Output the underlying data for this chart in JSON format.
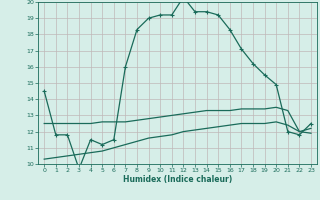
{
  "xlabel": "Humidex (Indice chaleur)",
  "xlim": [
    -0.5,
    23.5
  ],
  "ylim": [
    10,
    20
  ],
  "yticks": [
    10,
    11,
    12,
    13,
    14,
    15,
    16,
    17,
    18,
    19,
    20
  ],
  "xticks": [
    0,
    1,
    2,
    3,
    4,
    5,
    6,
    7,
    8,
    9,
    10,
    11,
    12,
    13,
    14,
    15,
    16,
    17,
    18,
    19,
    20,
    21,
    22,
    23
  ],
  "bg_color": "#d6eee8",
  "grid_color": "#c0b8b8",
  "line_color": "#1a6b5a",
  "line_width": 0.9,
  "marker_size": 2.5,
  "main_x": [
    0,
    1,
    2,
    3,
    4,
    5,
    6,
    7,
    8,
    9,
    10,
    11,
    12,
    13,
    14,
    15,
    16,
    17,
    18,
    19,
    20,
    21,
    22,
    23
  ],
  "main_y": [
    14.5,
    11.8,
    11.8,
    9.7,
    11.5,
    11.2,
    11.5,
    16.0,
    18.3,
    19.0,
    19.2,
    19.2,
    20.3,
    19.4,
    19.4,
    19.2,
    18.3,
    17.1,
    16.2,
    15.5,
    14.9,
    12.0,
    11.8,
    12.5
  ],
  "upper_x": [
    0,
    1,
    2,
    3,
    4,
    5,
    6,
    7,
    8,
    9,
    10,
    11,
    12,
    13,
    14,
    15,
    16,
    17,
    18,
    19,
    20,
    21,
    22,
    23
  ],
  "upper_y": [
    12.5,
    12.5,
    12.5,
    12.5,
    12.5,
    12.6,
    12.6,
    12.6,
    12.7,
    12.8,
    12.9,
    13.0,
    13.1,
    13.2,
    13.3,
    13.3,
    13.3,
    13.4,
    13.4,
    13.4,
    13.5,
    13.3,
    12.0,
    12.2
  ],
  "lower_x": [
    0,
    1,
    2,
    3,
    4,
    5,
    6,
    7,
    8,
    9,
    10,
    11,
    12,
    13,
    14,
    15,
    16,
    17,
    18,
    19,
    20,
    21,
    22,
    23
  ],
  "lower_y": [
    10.3,
    10.4,
    10.5,
    10.6,
    10.7,
    10.8,
    11.0,
    11.2,
    11.4,
    11.6,
    11.7,
    11.8,
    12.0,
    12.1,
    12.2,
    12.3,
    12.4,
    12.5,
    12.5,
    12.5,
    12.6,
    12.4,
    12.0,
    11.9
  ]
}
